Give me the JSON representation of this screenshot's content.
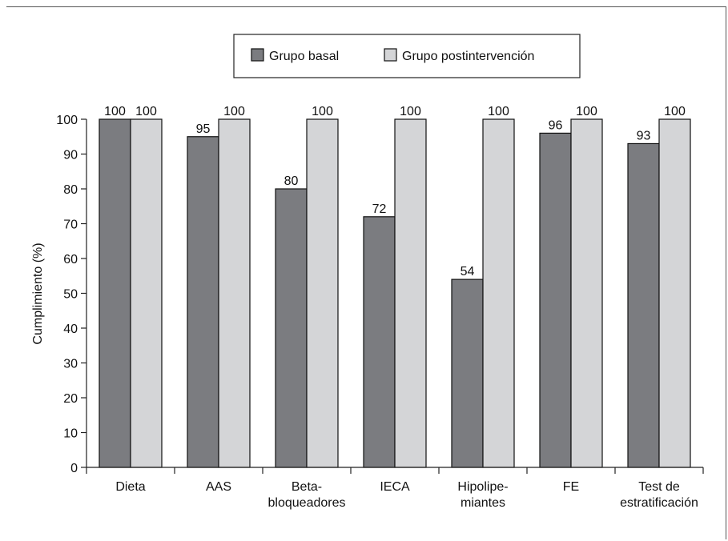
{
  "chart_data": {
    "type": "bar",
    "title": "",
    "xlabel": "",
    "ylabel": "Cumplimiento (%)",
    "ylim": [
      0,
      100
    ],
    "yticks": [
      0,
      10,
      20,
      30,
      40,
      50,
      60,
      70,
      80,
      90,
      100
    ],
    "grid": false,
    "legend_position": "top-center",
    "categories": [
      [
        "Dieta"
      ],
      [
        "AAS"
      ],
      [
        "Beta-",
        "bloqueadores"
      ],
      [
        "IECA"
      ],
      [
        "Hipolipe-",
        "miantes"
      ],
      [
        "FE"
      ],
      [
        "Test de",
        "estratificación"
      ]
    ],
    "series": [
      {
        "name": "Grupo basal",
        "color": "#7b7c80",
        "values": [
          100,
          95,
          80,
          72,
          54,
          96,
          93
        ]
      },
      {
        "name": "Grupo postintervención",
        "color": "#d4d5d7",
        "values": [
          100,
          100,
          100,
          100,
          100,
          100,
          100
        ]
      }
    ],
    "data_labels": true
  }
}
